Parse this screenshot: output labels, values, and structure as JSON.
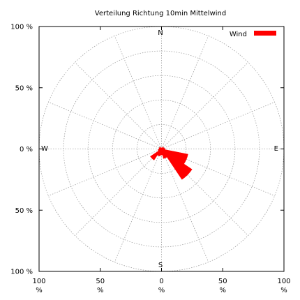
{
  "chart_data": {
    "type": "polar-bar",
    "title": "Verteilung Richtung  10min Mittelwind",
    "legend": {
      "label": "Wind",
      "position": "top-right"
    },
    "colors": {
      "series": "#ff0000"
    },
    "compass": {
      "n": "N",
      "e": "E",
      "s": "S",
      "w": "W"
    },
    "r_max": 100,
    "rings": [
      20,
      40,
      60,
      80,
      100
    ],
    "spoke_step_deg": 22.5,
    "y_ticks": [
      {
        "value": 100,
        "label": "100 %"
      },
      {
        "value": 50,
        "label": "50 %"
      },
      {
        "value": 0,
        "label": "0 %"
      },
      {
        "value": -50,
        "label": "50 %"
      },
      {
        "value": -100,
        "label": "100 %"
      }
    ],
    "x_ticks": [
      {
        "value": -100,
        "label": "100",
        "unit": "%"
      },
      {
        "value": -50,
        "label": "50",
        "unit": "%"
      },
      {
        "value": 0,
        "label": "0",
        "unit": "%"
      },
      {
        "value": 50,
        "label": "50",
        "unit": "%"
      },
      {
        "value": 100,
        "label": "100",
        "unit": "%"
      }
    ],
    "sectors": [
      {
        "direction_deg": 0,
        "value": 1
      },
      {
        "direction_deg": 22.5,
        "value": 1
      },
      {
        "direction_deg": 45,
        "value": 2
      },
      {
        "direction_deg": 67.5,
        "value": 2
      },
      {
        "direction_deg": 90,
        "value": 3
      },
      {
        "direction_deg": 112.5,
        "value": 22
      },
      {
        "direction_deg": 135,
        "value": 30
      },
      {
        "direction_deg": 157.5,
        "value": 8
      },
      {
        "direction_deg": 180,
        "value": 5
      },
      {
        "direction_deg": 202.5,
        "value": 6
      },
      {
        "direction_deg": 225,
        "value": 11
      },
      {
        "direction_deg": 247.5,
        "value": 3
      },
      {
        "direction_deg": 270,
        "value": 2
      },
      {
        "direction_deg": 292.5,
        "value": 2
      },
      {
        "direction_deg": 315,
        "value": 2
      },
      {
        "direction_deg": 337.5,
        "value": 1
      }
    ]
  }
}
